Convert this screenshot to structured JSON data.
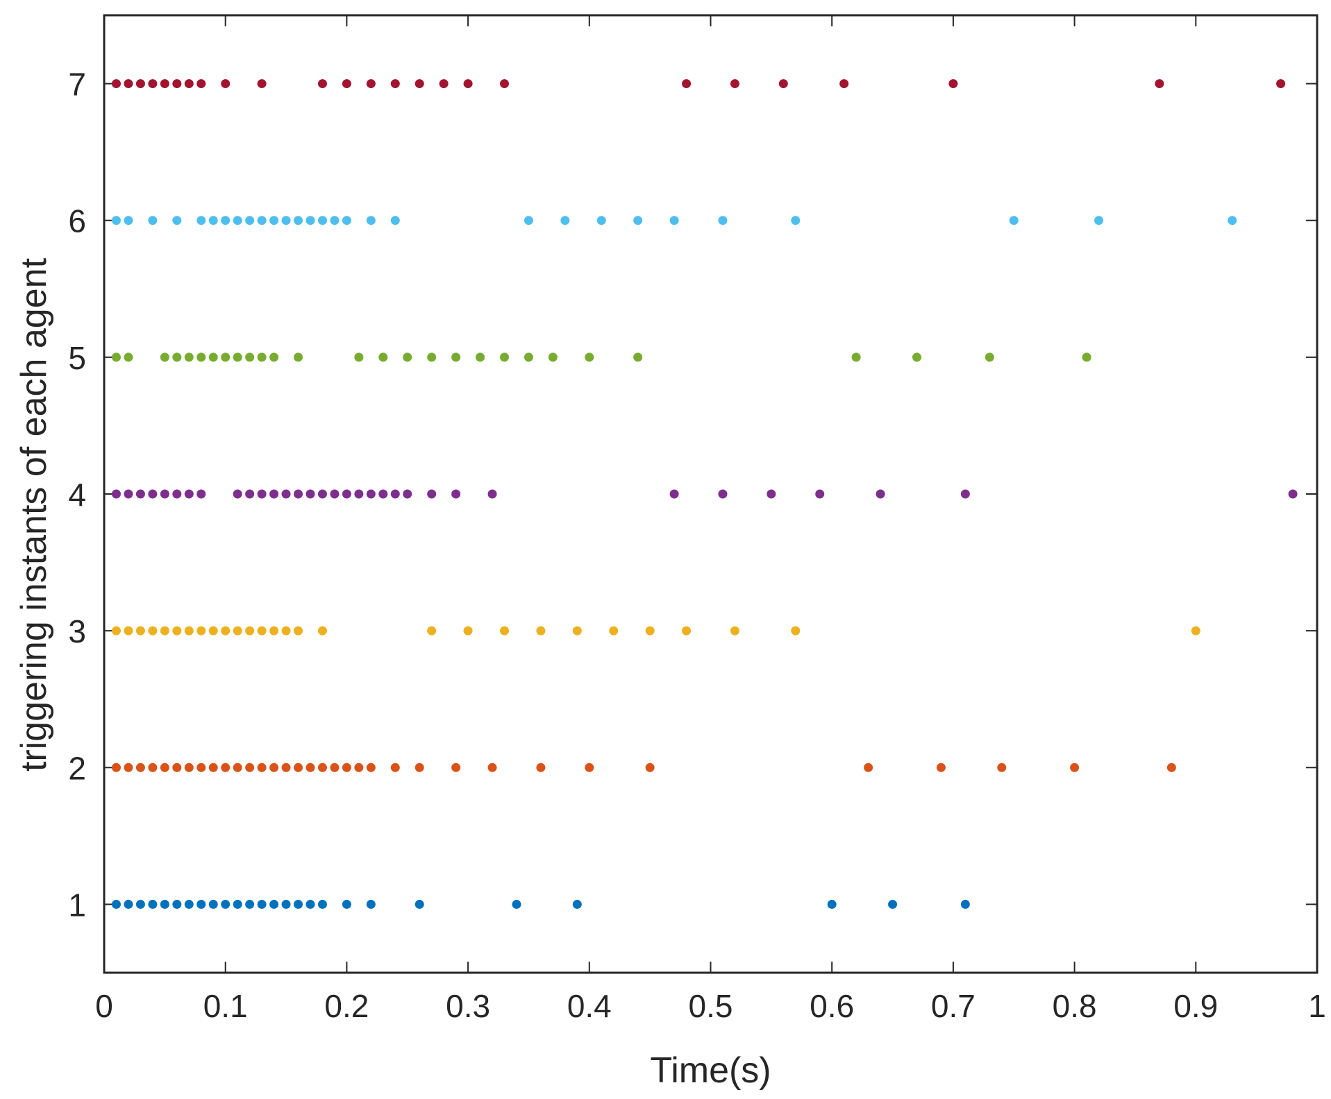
{
  "chart_data": {
    "type": "scatter",
    "title": "",
    "xlabel": "Time(s)",
    "ylabel": "triggering instants of each agent",
    "xlim": [
      0,
      1
    ],
    "ylim": [
      0.5,
      7.5
    ],
    "xticks": [
      0,
      0.1,
      0.2,
      0.3,
      0.4,
      0.5,
      0.6,
      0.7,
      0.8,
      0.9,
      1
    ],
    "xtick_labels": [
      "0",
      "0.1",
      "0.2",
      "0.3",
      "0.4",
      "0.5",
      "0.6",
      "0.7",
      "0.8",
      "0.9",
      "1"
    ],
    "yticks": [
      1,
      2,
      3,
      4,
      5,
      6,
      7
    ],
    "ytick_labels": [
      "1",
      "2",
      "3",
      "4",
      "5",
      "6",
      "7"
    ],
    "grid": false,
    "legend": "none",
    "axis_color": "#262626",
    "series": [
      {
        "y": 1,
        "color": "#0072BD",
        "x": [
          0.01,
          0.02,
          0.03,
          0.04,
          0.05,
          0.06,
          0.07,
          0.08,
          0.09,
          0.1,
          0.11,
          0.12,
          0.13,
          0.14,
          0.15,
          0.16,
          0.17,
          0.18,
          0.2,
          0.22,
          0.26,
          0.34,
          0.39,
          0.6,
          0.65,
          0.71
        ]
      },
      {
        "y": 2,
        "color": "#D95319",
        "x": [
          0.01,
          0.02,
          0.03,
          0.04,
          0.05,
          0.06,
          0.07,
          0.08,
          0.09,
          0.1,
          0.11,
          0.12,
          0.13,
          0.14,
          0.15,
          0.16,
          0.17,
          0.18,
          0.19,
          0.2,
          0.21,
          0.22,
          0.24,
          0.26,
          0.29,
          0.32,
          0.36,
          0.4,
          0.45,
          0.63,
          0.69,
          0.74,
          0.8,
          0.88
        ]
      },
      {
        "y": 3,
        "color": "#EDB120",
        "x": [
          0.01,
          0.02,
          0.03,
          0.04,
          0.05,
          0.06,
          0.07,
          0.08,
          0.09,
          0.1,
          0.11,
          0.12,
          0.13,
          0.14,
          0.15,
          0.16,
          0.18,
          0.27,
          0.3,
          0.33,
          0.36,
          0.39,
          0.42,
          0.45,
          0.48,
          0.52,
          0.57,
          0.9
        ]
      },
      {
        "y": 4,
        "color": "#7E2F8E",
        "x": [
          0.01,
          0.02,
          0.03,
          0.04,
          0.05,
          0.06,
          0.07,
          0.08,
          0.11,
          0.12,
          0.13,
          0.14,
          0.15,
          0.16,
          0.17,
          0.18,
          0.19,
          0.2,
          0.21,
          0.22,
          0.23,
          0.24,
          0.25,
          0.27,
          0.29,
          0.32,
          0.47,
          0.51,
          0.55,
          0.59,
          0.64,
          0.71,
          0.98
        ]
      },
      {
        "y": 5,
        "color": "#77AC30",
        "x": [
          0.01,
          0.02,
          0.05,
          0.06,
          0.07,
          0.08,
          0.09,
          0.1,
          0.11,
          0.12,
          0.13,
          0.14,
          0.16,
          0.21,
          0.23,
          0.25,
          0.27,
          0.29,
          0.31,
          0.33,
          0.35,
          0.37,
          0.4,
          0.44,
          0.62,
          0.67,
          0.73,
          0.81
        ]
      },
      {
        "y": 6,
        "color": "#4DBEEE",
        "x": [
          0.01,
          0.02,
          0.04,
          0.06,
          0.08,
          0.09,
          0.1,
          0.11,
          0.12,
          0.13,
          0.14,
          0.15,
          0.16,
          0.17,
          0.18,
          0.19,
          0.2,
          0.22,
          0.24,
          0.35,
          0.38,
          0.41,
          0.44,
          0.47,
          0.51,
          0.57,
          0.75,
          0.82,
          0.93
        ]
      },
      {
        "y": 7,
        "color": "#A2142F",
        "x": [
          0.01,
          0.02,
          0.03,
          0.04,
          0.05,
          0.06,
          0.07,
          0.08,
          0.1,
          0.13,
          0.18,
          0.2,
          0.22,
          0.24,
          0.26,
          0.28,
          0.3,
          0.33,
          0.48,
          0.52,
          0.56,
          0.61,
          0.7,
          0.87,
          0.97
        ]
      }
    ]
  }
}
